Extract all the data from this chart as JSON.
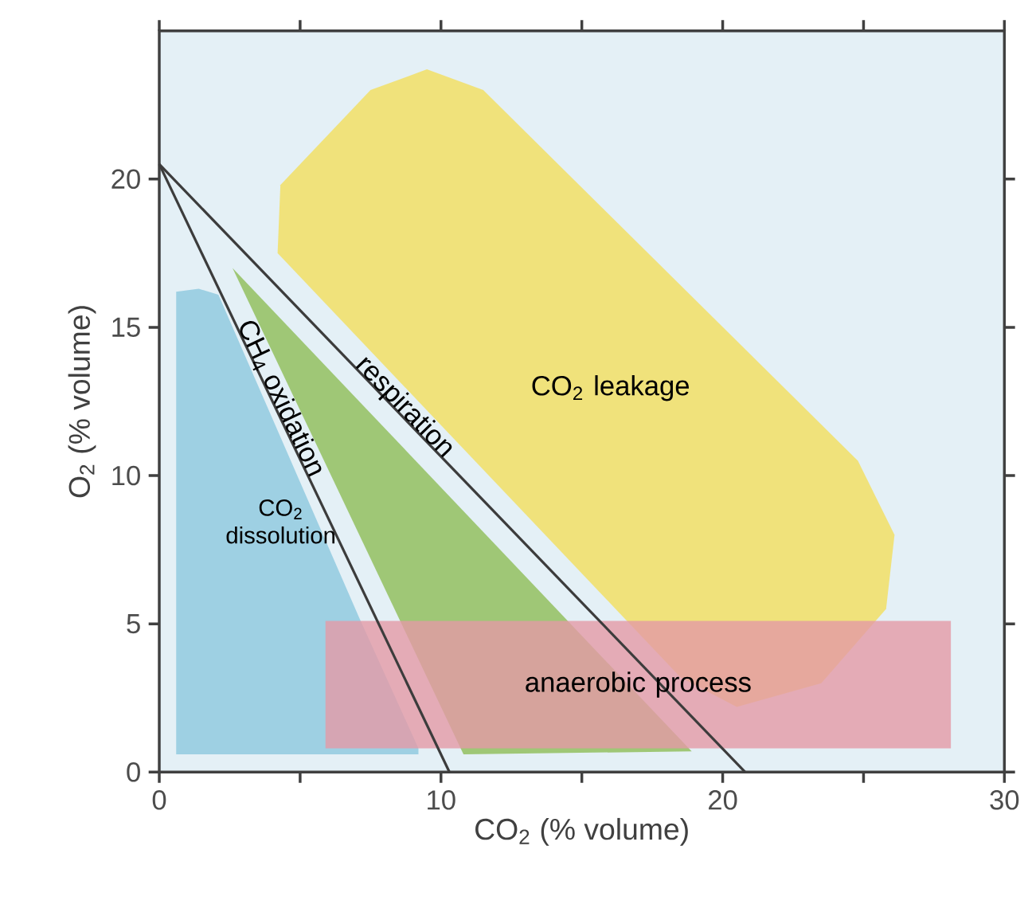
{
  "chart_data": {
    "type": "area",
    "xlabel": "CO$_{2}$ (% volume)",
    "ylabel": "O$_{2}$ (% volume)",
    "xlim": [
      0,
      30
    ],
    "ylim": [
      0,
      25
    ],
    "xticks": [
      0,
      {
        "value": 5,
        "label": null
      },
      10,
      {
        "value": 15,
        "label": null
      },
      20,
      {
        "value": 25,
        "label": null
      },
      30
    ],
    "yticks": [
      0,
      5,
      10,
      15,
      20
    ],
    "grid": false,
    "series": [
      {
        "name": "CO$_{2}$ dissolution",
        "color": "#8cc8df",
        "x": [
          0.6,
          1.4,
          2.1,
          7.1,
          9.2,
          9.2,
          0.6
        ],
        "values": [
          16.2,
          16.3,
          16.1,
          5.2,
          0.8,
          0.6,
          0.6
        ]
      },
      {
        "color": "#8dbd56",
        "x": [
          2.6,
          10.8,
          18.9
        ],
        "values": [
          17.0,
          0.6,
          0.7
        ]
      },
      {
        "name": "CO$_{2}$ leakage",
        "color": "#f3df5c",
        "x": [
          4.2,
          4.3,
          7.5,
          9.5,
          11.5,
          24.8,
          26.1,
          25.8,
          23.5,
          20.5,
          18.5
        ],
        "values": [
          17.5,
          19.8,
          23.0,
          23.7,
          23.0,
          10.5,
          8.0,
          5.5,
          3.0,
          2.2,
          3.2
        ]
      },
      {
        "name": "anaerobic process",
        "color": "#e39aa6",
        "x": [
          5.9,
          28.1,
          28.1,
          5.9
        ],
        "values": [
          0.8,
          0.8,
          5.1,
          5.1
        ]
      },
      {
        "type": "line",
        "color": "#3c3c3c",
        "x": [
          0,
          10.3
        ],
        "values": [
          20.5,
          0
        ]
      },
      {
        "type": "line",
        "color": "#3c3c3c",
        "x": [
          0,
          20.8
        ],
        "values": [
          20.5,
          0
        ]
      }
    ],
    "annotations": [
      {
        "text": "CH$_{4}$ oxidation",
        "x": 4.3,
        "y": 12.6
      },
      {
        "text": "respiration",
        "x": 8.7,
        "y": 12.3
      }
    ]
  }
}
